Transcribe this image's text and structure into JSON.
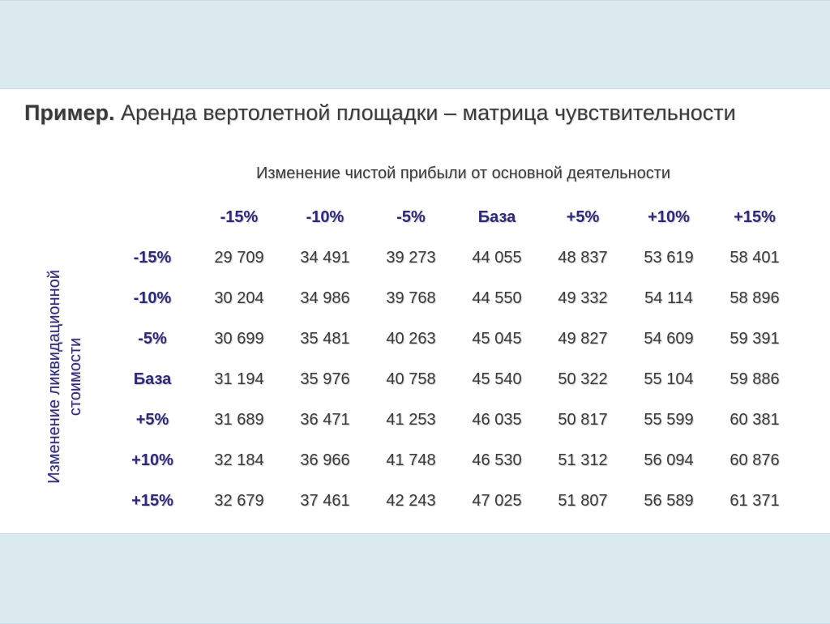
{
  "title": {
    "prefix": "Пример.",
    "text": "Аренда вертолетной площадки – матрица чувствительности"
  },
  "matrix": {
    "column_header": "Изменение чистой прибыли от основной деятельности",
    "row_header": "Изменение ликвидационной стоимости",
    "columns": [
      "-15%",
      "-10%",
      "-5%",
      "База",
      "+5%",
      "+10%",
      "+15%"
    ],
    "rows": [
      {
        "label": "-15%",
        "values": [
          "29 709",
          "34 491",
          "39 273",
          "44 055",
          "48 837",
          "53 619",
          "58 401"
        ]
      },
      {
        "label": "-10%",
        "values": [
          "30 204",
          "34 986",
          "39 768",
          "44 550",
          "49 332",
          "54 114",
          "58 896"
        ]
      },
      {
        "label": "-5%",
        "values": [
          "30 699",
          "35 481",
          "40 263",
          "45 045",
          "49 827",
          "54 609",
          "59 391"
        ]
      },
      {
        "label": "База",
        "values": [
          "31 194",
          "35 976",
          "40 758",
          "45 540",
          "50 322",
          "55 104",
          "59 886"
        ]
      },
      {
        "label": "+5%",
        "values": [
          "31 689",
          "36 471",
          "41 253",
          "46 035",
          "50 817",
          "55 599",
          "60 381"
        ]
      },
      {
        "label": "+10%",
        "values": [
          "32 184",
          "36 966",
          "41 748",
          "46 530",
          "51 312",
          "56 094",
          "60 876"
        ]
      },
      {
        "label": "+15%",
        "values": [
          "32 679",
          "37 461",
          "42 243",
          "47 025",
          "51 807",
          "56 589",
          "61 371"
        ]
      }
    ]
  },
  "colors": {
    "band": "#daeaef",
    "accent": "#2f2a78",
    "text": "#3a3a3a"
  }
}
